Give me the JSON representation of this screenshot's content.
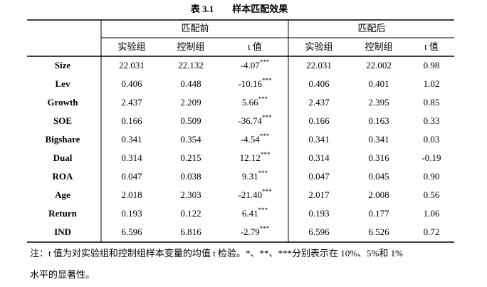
{
  "title": "表 3.1　　样本匹配效果",
  "table": {
    "groups": [
      "匹配前",
      "匹配后"
    ],
    "subheaders": [
      "实验组",
      "控制组",
      "t 值",
      "实验组",
      "控制组",
      "t 值"
    ],
    "rows": [
      {
        "label": "Size",
        "cells": [
          "22.031",
          "22.132",
          "-4.07",
          "22.031",
          "22.002",
          "0.98"
        ],
        "stars": "***"
      },
      {
        "label": "Lev",
        "cells": [
          "0.406",
          "0.448",
          "-10.16",
          "0.406",
          "0.401",
          "1.02"
        ],
        "stars": "***"
      },
      {
        "label": "Growth",
        "cells": [
          "2.437",
          "2.209",
          "5.66",
          "2.437",
          "2.395",
          "0.85"
        ],
        "stars": "***"
      },
      {
        "label": "SOE",
        "cells": [
          "0.166",
          "0.509",
          "-36.74",
          "0.166",
          "0.163",
          "0.33"
        ],
        "stars": "***"
      },
      {
        "label": "Bigshare",
        "cells": [
          "0.341",
          "0.354",
          "-4.54",
          "0.341",
          "0.341",
          "0.03"
        ],
        "stars": "***"
      },
      {
        "label": "Dual",
        "cells": [
          "0.314",
          "0.215",
          "12.12",
          "0.314",
          "0.316",
          "-0.19"
        ],
        "stars": "***"
      },
      {
        "label": "ROA",
        "cells": [
          "0.047",
          "0.038",
          "9.31",
          "0.047",
          "0.045",
          "0.90"
        ],
        "stars": "***"
      },
      {
        "label": "Age",
        "cells": [
          "2.018",
          "2.303",
          "-21.40",
          "2.017",
          "2.008",
          "0.56"
        ],
        "stars": "***"
      },
      {
        "label": "Return",
        "cells": [
          "0.193",
          "0.122",
          "6.41",
          "0.193",
          "0.177",
          "1.06"
        ],
        "stars": "***"
      },
      {
        "label": "IND",
        "cells": [
          "6.596",
          "6.816",
          "-2.79",
          "6.596",
          "6.526",
          "0.72"
        ],
        "stars": "***"
      }
    ]
  },
  "note": [
    "注：t 值为对实验组和控制组样本变量的均值 t 检验。*、**、***分别表示在 10%、5%和 1%",
    "水平的显著性。"
  ]
}
